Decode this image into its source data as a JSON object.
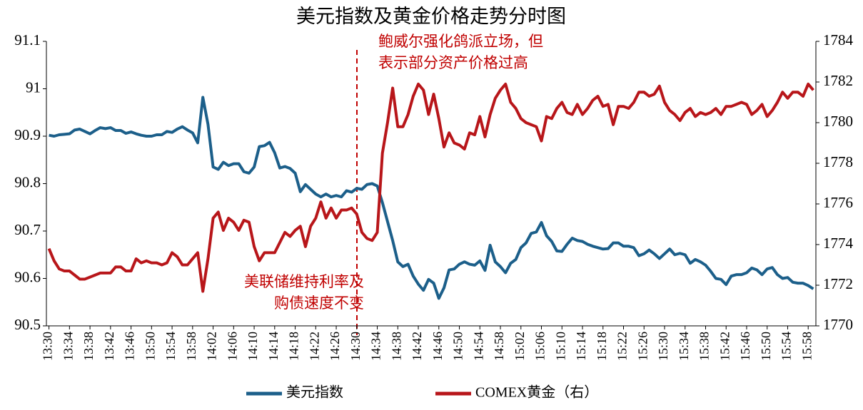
{
  "chart_data": {
    "type": "line",
    "title": "美元指数及黄金价格走势分时图",
    "categories": [
      "13:30",
      null,
      null,
      null,
      "13:34",
      null,
      null,
      null,
      "13:38",
      null,
      null,
      null,
      "13:42",
      null,
      null,
      null,
      "13:46",
      null,
      null,
      null,
      "13:50",
      null,
      null,
      null,
      "13:54",
      null,
      null,
      null,
      "13:58",
      null,
      null,
      null,
      "14:02",
      null,
      null,
      null,
      "14:06",
      null,
      null,
      null,
      "14:10",
      null,
      null,
      null,
      "14:14",
      null,
      null,
      null,
      "14:18",
      null,
      null,
      null,
      "14:22",
      null,
      null,
      null,
      "14:26",
      null,
      null,
      null,
      "14:30",
      null,
      null,
      null,
      "14:34",
      null,
      null,
      null,
      "14:38",
      null,
      null,
      null,
      "14:42",
      null,
      null,
      null,
      "14:46",
      null,
      null,
      null,
      "14:50",
      null,
      null,
      null,
      "14:54",
      null,
      null,
      null,
      "14:58",
      null,
      null,
      null,
      "15:02",
      null,
      null,
      null,
      "15:06",
      null,
      null,
      null,
      "15:10",
      null,
      null,
      null,
      "15:14",
      null,
      null,
      null,
      "15:18",
      null,
      null,
      null,
      "15:22",
      null,
      null,
      null,
      "15:26",
      null,
      null,
      null,
      "15:30",
      null,
      null,
      null,
      "15:34",
      null,
      null,
      null,
      "15:38",
      null,
      null,
      null,
      "15:42",
      null,
      null,
      null,
      "15:46",
      null,
      null,
      null,
      "15:50",
      null,
      null,
      null,
      "15:54",
      null,
      null,
      null,
      "15:58",
      null
    ],
    "series": [
      {
        "name": "美元指数",
        "color": "#1c5f8a",
        "axis": "y",
        "values": [
          90.902,
          90.9,
          90.903,
          90.904,
          90.905,
          90.913,
          90.915,
          90.91,
          90.905,
          90.912,
          90.918,
          90.916,
          90.918,
          90.912,
          90.912,
          90.906,
          90.909,
          90.905,
          90.902,
          90.9,
          90.9,
          90.903,
          90.903,
          90.91,
          90.908,
          90.915,
          90.92,
          90.913,
          90.907,
          90.886,
          90.982,
          90.925,
          90.835,
          90.83,
          90.845,
          90.838,
          90.842,
          90.842,
          90.825,
          90.822,
          90.835,
          90.878,
          90.88,
          90.887,
          90.865,
          90.833,
          90.836,
          90.832,
          90.822,
          90.783,
          90.798,
          90.788,
          90.778,
          90.772,
          90.778,
          90.772,
          90.775,
          90.772,
          90.785,
          90.782,
          90.79,
          90.788,
          90.798,
          90.8,
          90.795,
          90.76,
          90.72,
          90.68,
          90.635,
          90.625,
          90.63,
          90.605,
          90.588,
          90.575,
          90.598,
          90.59,
          90.558,
          90.58,
          90.618,
          90.62,
          90.63,
          90.635,
          90.63,
          90.628,
          90.637,
          90.617,
          90.67,
          90.635,
          90.625,
          90.612,
          90.632,
          90.64,
          90.665,
          90.675,
          90.695,
          90.698,
          90.718,
          90.69,
          90.678,
          90.658,
          90.657,
          90.672,
          90.685,
          90.68,
          90.678,
          90.672,
          90.668,
          90.665,
          90.662,
          90.663,
          90.675,
          90.675,
          90.668,
          90.668,
          90.665,
          90.648,
          90.652,
          90.66,
          90.652,
          90.642,
          90.652,
          90.662,
          90.65,
          90.653,
          90.65,
          90.632,
          90.64,
          90.635,
          90.628,
          90.615,
          90.6,
          90.598,
          90.587,
          90.605,
          90.608,
          90.608,
          90.612,
          90.622,
          90.618,
          90.608,
          90.62,
          90.623,
          90.608,
          90.6,
          90.602,
          90.592,
          90.59,
          90.59,
          90.585,
          90.578
        ]
      },
      {
        "name": "COMEX黄金（右）",
        "color": "#b8161a",
        "axis": "y2",
        "values": [
          1773.8,
          1773.2,
          1772.8,
          1772.7,
          1772.7,
          1772.5,
          1772.3,
          1772.3,
          1772.4,
          1772.5,
          1772.6,
          1772.6,
          1772.6,
          1772.9,
          1772.9,
          1772.7,
          1772.7,
          1773.3,
          1773.1,
          1773.2,
          1773.1,
          1773.1,
          1773.0,
          1773.1,
          1773.6,
          1773.4,
          1773.0,
          1773.0,
          1773.3,
          1773.6,
          1771.7,
          1773.3,
          1775.3,
          1775.6,
          1774.7,
          1775.3,
          1775.1,
          1774.7,
          1775.2,
          1775.1,
          1773.9,
          1773.2,
          1773.6,
          1773.6,
          1773.6,
          1774.1,
          1774.6,
          1774.4,
          1774.7,
          1774.9,
          1773.9,
          1774.9,
          1775.3,
          1776.1,
          1775.3,
          1775.8,
          1775.3,
          1775.7,
          1775.7,
          1775.8,
          1775.5,
          1774.6,
          1774.3,
          1774.2,
          1774.6,
          1778.5,
          1780.0,
          1781.7,
          1779.8,
          1779.8,
          1780.4,
          1781.3,
          1781.9,
          1781.6,
          1780.4,
          1781.4,
          1780.2,
          1778.8,
          1779.5,
          1779.0,
          1778.9,
          1778.7,
          1779.5,
          1779.4,
          1780.3,
          1779.3,
          1780.4,
          1781.2,
          1781.6,
          1781.9,
          1781.0,
          1780.7,
          1780.2,
          1780.0,
          1779.9,
          1779.8,
          1779.1,
          1780.3,
          1780.2,
          1780.7,
          1781.0,
          1780.5,
          1780.4,
          1780.9,
          1780.4,
          1780.7,
          1781.1,
          1781.3,
          1780.8,
          1780.9,
          1779.9,
          1780.8,
          1780.8,
          1780.7,
          1781.0,
          1781.5,
          1781.5,
          1781.3,
          1781.4,
          1781.8,
          1781.0,
          1780.6,
          1780.4,
          1780.1,
          1780.5,
          1780.7,
          1780.3,
          1780.5,
          1780.4,
          1780.5,
          1780.7,
          1780.4,
          1780.8,
          1780.8,
          1780.9,
          1781.0,
          1780.9,
          1780.4,
          1780.6,
          1780.9,
          1780.3,
          1780.6,
          1781.0,
          1781.5,
          1781.2,
          1781.5,
          1781.5,
          1781.3,
          1781.9,
          1781.6
        ]
      }
    ],
    "ylim": [
      90.5,
      91.1
    ],
    "yticks": [
      90.5,
      90.6,
      90.7,
      90.8,
      90.9,
      91,
      91.1
    ],
    "y2lim": [
      1770,
      1784
    ],
    "y2ticks": [
      1770,
      1772,
      1774,
      1776,
      1778,
      1780,
      1782,
      1784
    ],
    "annotations": [
      [
        "美联储维持利率及",
        "购债速度不变"
      ],
      [
        "鲍威尔强化鸽派立场，但",
        "表示部分资产价格过高"
      ]
    ],
    "legend": "bottom"
  }
}
